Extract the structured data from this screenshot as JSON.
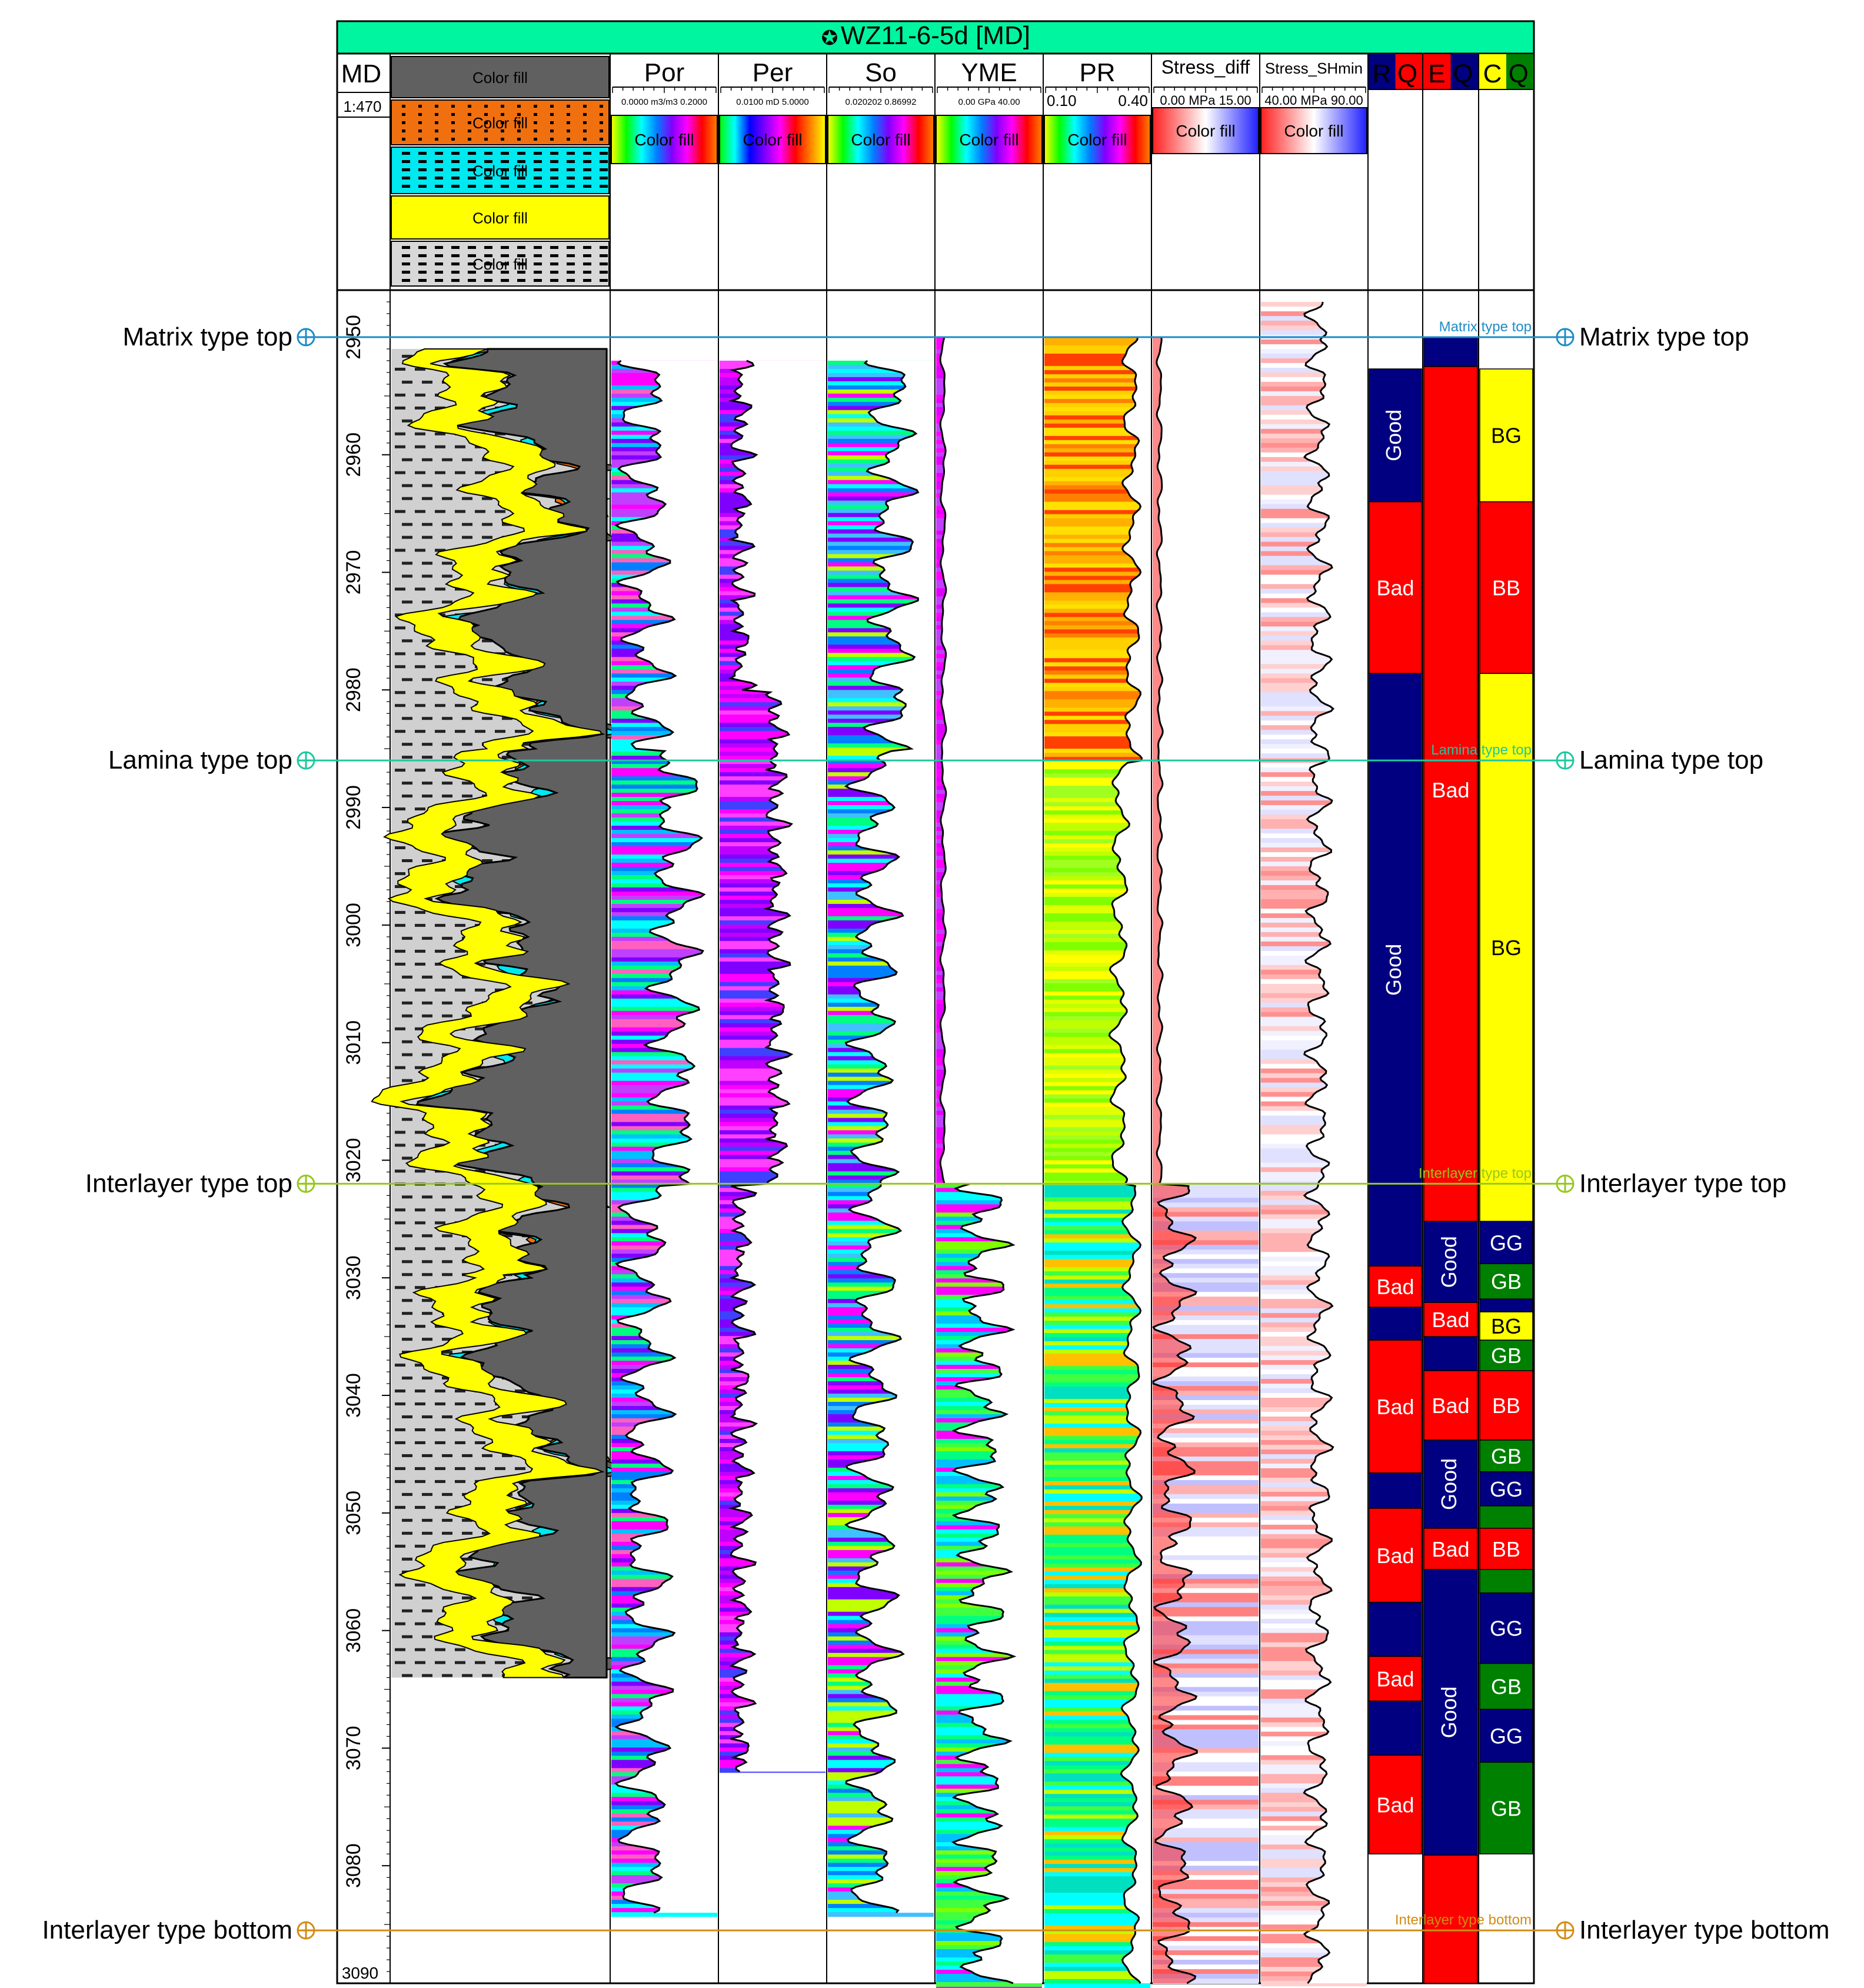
{
  "well_title": "WZ11-6-5d [MD]",
  "colors": {
    "title_bar": "#00F5A0",
    "matrix": "#1E8CC8",
    "lamina": "#1CC8A0",
    "interlayer_top": "#96C81E",
    "interlayer_bottom": "#D28C14",
    "good": "#000080",
    "bad": "#FF0000",
    "gg": "#000080",
    "gb": "#008000",
    "bg": "#FFFF00",
    "bb": "#FF0000"
  },
  "chart_data": {
    "type": "well-log",
    "depth_unit": "m",
    "depth_range": [
      2946,
      3090
    ],
    "depth_ticks": [
      2950,
      2960,
      2970,
      2980,
      2990,
      3000,
      3010,
      3020,
      3030,
      3040,
      3050,
      3060,
      3070,
      3080,
      3090
    ],
    "md_column": {
      "label": "MD",
      "scale": "1:470"
    },
    "lithology_legend": [
      "Color fill",
      "Color fill",
      "Color fill",
      "Color fill",
      "Color fill"
    ],
    "tracks": [
      {
        "name": "Por",
        "unit": "m3/m3",
        "min": "0.0000",
        "max": "0.2000",
        "range_text": "0.0000 m3/m3 0.2000",
        "fill_label": "Color fill"
      },
      {
        "name": "Per",
        "unit": "mD",
        "min": "0.0100",
        "max": "5.0000",
        "range_text": "0.0100 mD 5.0000",
        "fill_label": "Color fill"
      },
      {
        "name": "So",
        "unit": "",
        "min": "0.020202",
        "max": "0.86992",
        "range_text": "0.020202   0.86992",
        "fill_label": "Color fill"
      },
      {
        "name": "YME",
        "unit": "GPa",
        "min": "0.00",
        "max": "40.00",
        "range_text": "0.00 GPa 40.00",
        "fill_label": "Color fill"
      },
      {
        "name": "PR",
        "unit": "",
        "min": "0.10",
        "max": "0.40",
        "range_left": "0.10",
        "range_right": "0.40",
        "fill_label": "Color fill"
      },
      {
        "name": "Stress_diff",
        "unit": "MPa",
        "min": "0.00",
        "max": "15.00",
        "range_text": "0.00 MPa 15.00",
        "fill_label": "Color fill"
      },
      {
        "name": "Stress_SHmin",
        "unit": "MPa",
        "min": "40.00",
        "max": "90.00",
        "range_text": "40.00 MPa 90.00",
        "fill_label": "Color fill"
      }
    ],
    "quality_tracks": [
      {
        "name": "RQ",
        "letters": [
          "R",
          "Q"
        ]
      },
      {
        "name": "EQ",
        "letters": [
          "E",
          "Q"
        ]
      },
      {
        "name": "CQ",
        "letters": [
          "C",
          "Q"
        ]
      }
    ],
    "markers": [
      {
        "name": "Matrix type top",
        "depth": 2950.0,
        "color_key": "matrix"
      },
      {
        "name": "Lamina type top",
        "depth": 2986.0,
        "color_key": "lamina"
      },
      {
        "name": "Interlayer type top",
        "depth": 3022.0,
        "color_key": "interlayer_top"
      },
      {
        "name": "Interlayer type bottom",
        "depth": 3085.5,
        "color_key": "interlayer_bottom"
      }
    ],
    "rq_zones": [
      {
        "top": 2952.7,
        "bottom": 2964.0,
        "label": "Good",
        "q": "good",
        "vertical": true
      },
      {
        "top": 2964.0,
        "bottom": 2978.6,
        "label": "Bad",
        "q": "bad"
      },
      {
        "top": 2978.6,
        "bottom": 3029.0,
        "label": "Good",
        "q": "good",
        "vertical": true
      },
      {
        "top": 3029.0,
        "bottom": 3032.5,
        "label": "Bad",
        "q": "bad"
      },
      {
        "top": 3032.5,
        "bottom": 3035.3,
        "label": "",
        "q": "good"
      },
      {
        "top": 3035.3,
        "bottom": 3046.6,
        "label": "Bad",
        "q": "bad"
      },
      {
        "top": 3046.6,
        "bottom": 3049.6,
        "label": "",
        "q": "good"
      },
      {
        "top": 3049.6,
        "bottom": 3057.6,
        "label": "Bad",
        "q": "bad"
      },
      {
        "top": 3057.6,
        "bottom": 3062.2,
        "label": "",
        "q": "good"
      },
      {
        "top": 3062.2,
        "bottom": 3066.0,
        "label": "Bad",
        "q": "bad"
      },
      {
        "top": 3066.0,
        "bottom": 3070.6,
        "label": "",
        "q": "good"
      },
      {
        "top": 3070.6,
        "bottom": 3079.0,
        "label": "Bad",
        "q": "bad"
      }
    ],
    "eq_zones": [
      {
        "top": 2950.0,
        "bottom": 2952.5,
        "label": "",
        "q": "good"
      },
      {
        "top": 2952.5,
        "bottom": 3025.2,
        "label": "Bad",
        "q": "bad",
        "label_depth": 2988.5
      },
      {
        "top": 3025.2,
        "bottom": 3032.1,
        "label": "Good",
        "q": "good",
        "vertical": true
      },
      {
        "top": 3032.1,
        "bottom": 3035.0,
        "label": "Bad",
        "q": "bad"
      },
      {
        "top": 3035.0,
        "bottom": 3037.9,
        "label": "",
        "q": "good"
      },
      {
        "top": 3037.9,
        "bottom": 3043.8,
        "label": "Bad",
        "q": "bad"
      },
      {
        "top": 3043.8,
        "bottom": 3051.3,
        "label": "Good",
        "q": "good",
        "vertical": true
      },
      {
        "top": 3051.3,
        "bottom": 3054.8,
        "label": "Bad",
        "q": "bad"
      },
      {
        "top": 3054.8,
        "bottom": 3079.1,
        "label": "Good",
        "q": "good",
        "vertical": true
      },
      {
        "top": 3079.1,
        "bottom": 3090.0,
        "label": "",
        "q": "bad"
      }
    ],
    "cq_zones": [
      {
        "top": 2952.7,
        "bottom": 2964.0,
        "label": "BG",
        "q": "bg"
      },
      {
        "top": 2964.0,
        "bottom": 2978.6,
        "label": "BB",
        "q": "bb"
      },
      {
        "top": 2978.6,
        "bottom": 3025.2,
        "label": "BG",
        "q": "bg"
      },
      {
        "top": 3025.2,
        "bottom": 3028.8,
        "label": "GG",
        "q": "gg"
      },
      {
        "top": 3028.8,
        "bottom": 3031.8,
        "label": "GB",
        "q": "gb"
      },
      {
        "top": 3031.8,
        "bottom": 3032.9,
        "label": "",
        "q": "gg"
      },
      {
        "top": 3032.9,
        "bottom": 3035.3,
        "label": "BG",
        "q": "bg"
      },
      {
        "top": 3035.3,
        "bottom": 3037.9,
        "label": "GB",
        "q": "gb"
      },
      {
        "top": 3037.9,
        "bottom": 3043.8,
        "label": "BB",
        "q": "bb"
      },
      {
        "top": 3043.8,
        "bottom": 3046.5,
        "label": "GB",
        "q": "gb"
      },
      {
        "top": 3046.5,
        "bottom": 3049.4,
        "label": "GG",
        "q": "gg"
      },
      {
        "top": 3049.4,
        "bottom": 3051.3,
        "label": "",
        "q": "gb"
      },
      {
        "top": 3051.3,
        "bottom": 3054.8,
        "label": "BB",
        "q": "bb"
      },
      {
        "top": 3054.8,
        "bottom": 3056.8,
        "label": "",
        "q": "gb"
      },
      {
        "top": 3056.8,
        "bottom": 3062.8,
        "label": "GG",
        "q": "gg"
      },
      {
        "top": 3062.8,
        "bottom": 3066.7,
        "label": "GB",
        "q": "gb"
      },
      {
        "top": 3066.7,
        "bottom": 3071.2,
        "label": "GG",
        "q": "gg"
      },
      {
        "top": 3071.2,
        "bottom": 3079.0,
        "label": "GB",
        "q": "gb"
      }
    ]
  }
}
